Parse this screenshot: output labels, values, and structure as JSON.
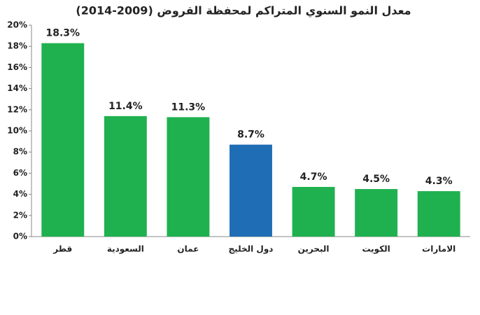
{
  "chart_data": {
    "type": "bar",
    "title": "معدل النمو السنوي المتراكم لمحفظة القروض (2009-2014)",
    "categories": [
      "قطر",
      "السعودية",
      "عمان",
      "دول الخليج",
      "البحرين",
      "الكويت",
      "الامارات"
    ],
    "values": [
      18.3,
      11.4,
      11.3,
      8.7,
      4.7,
      4.5,
      4.3
    ],
    "value_labels": [
      "18.3%",
      "11.4%",
      "11.3%",
      "8.7%",
      "4.7%",
      "4.5%",
      "4.3%"
    ],
    "colors": [
      "#1fb14f",
      "#1fb14f",
      "#1fb14f",
      "#1f6db5",
      "#1fb14f",
      "#1fb14f",
      "#1fb14f"
    ],
    "ylim": [
      0,
      20
    ],
    "yticks": [
      {
        "value": 0,
        "label": "0%"
      },
      {
        "value": 2,
        "label": "2%"
      },
      {
        "value": 4,
        "label": "4%"
      },
      {
        "value": 6,
        "label": "6%"
      },
      {
        "value": 8,
        "label": "8%"
      },
      {
        "value": 10,
        "label": "10%"
      },
      {
        "value": 12,
        "label": "12%"
      },
      {
        "value": 14,
        "label": "14%"
      },
      {
        "value": 16,
        "label": "16%"
      },
      {
        "value": 18,
        "label": "18%"
      },
      {
        "value": 20,
        "label": "20%"
      }
    ],
    "grid": false
  }
}
